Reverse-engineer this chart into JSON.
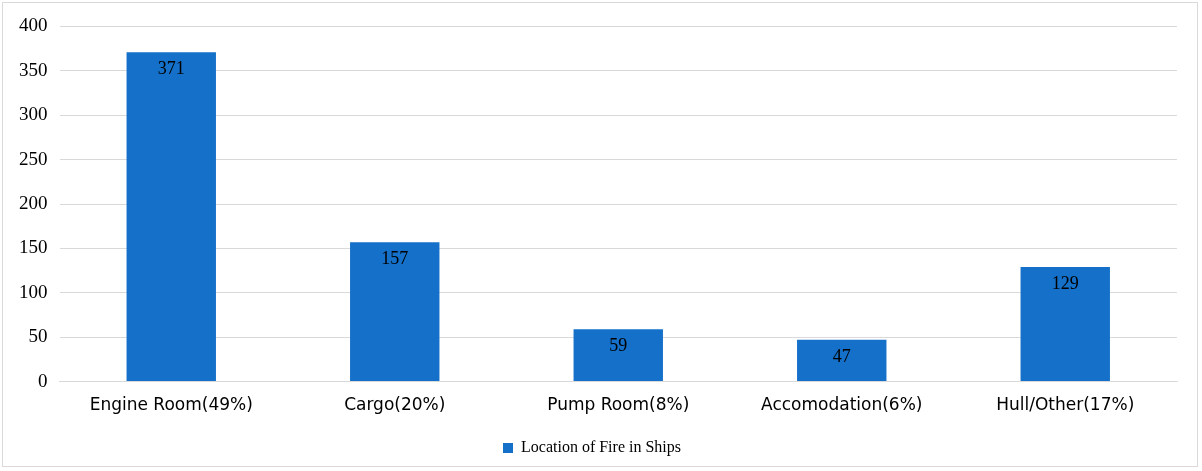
{
  "chart_data": {
    "type": "bar",
    "categories": [
      "Engine Room(49%)",
      "Cargo(20%)",
      "Pump Room(8%)",
      "Accomodation(6%)",
      "Hull/Other(17%)"
    ],
    "series": [
      {
        "name": "Location of Fire in Ships",
        "color": "#1470c8",
        "values": [
          371,
          157,
          59,
          47,
          129
        ]
      }
    ],
    "ylim": [
      0,
      400
    ],
    "yticks": [
      0,
      50,
      100,
      150,
      200,
      250,
      300,
      350,
      400
    ],
    "grid": "y",
    "legend": "bottom",
    "data_labels": true
  }
}
